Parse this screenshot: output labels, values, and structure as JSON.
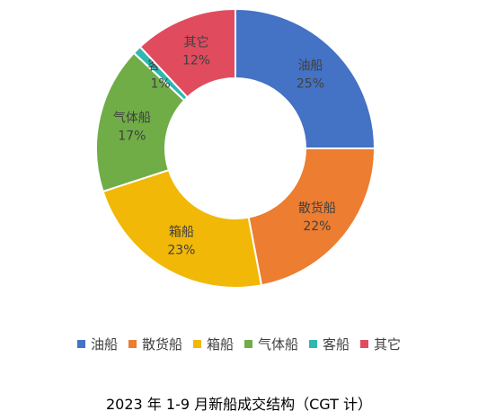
{
  "chart_data": {
    "type": "pie",
    "style": "donut",
    "title": "2023 年 1-9 月新船成交结构（CGT 计）",
    "categories": [
      "油船",
      "散货船",
      "箱船",
      "气体船",
      "客船",
      "其它"
    ],
    "values": [
      25,
      22,
      23,
      17,
      1,
      12
    ],
    "value_labels": [
      "25%",
      "22%",
      "23%",
      "17%",
      "1%",
      "12%"
    ],
    "colors": [
      "#4472C4",
      "#ED7D31",
      "#F2B807",
      "#70AD47",
      "#2EB8B0",
      "#E04C5E"
    ],
    "legend_position": "bottom"
  }
}
